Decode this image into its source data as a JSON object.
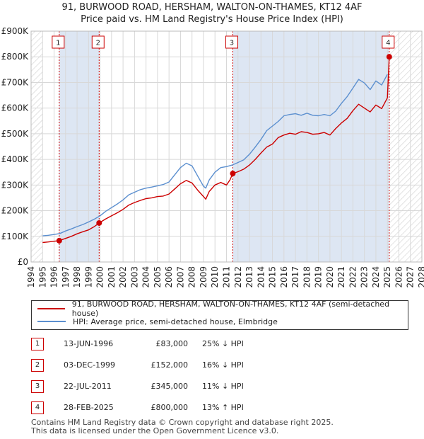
{
  "title_line1": "91, BURWOOD ROAD, HERSHAM, WALTON-ON-THAMES, KT12 4AF",
  "title_line2": "Price paid vs. HM Land Registry's House Price Index (HPI)",
  "colors": {
    "property": "#cc0000",
    "hpi": "#5b8fcf",
    "shade": "#dde6f3",
    "grid": "#d8d8d8",
    "marker": "#cc0000"
  },
  "chart_data": {
    "type": "line",
    "title": "Price paid vs. HM Land Registry's House Price Index (HPI)",
    "xlabel": "",
    "ylabel": "",
    "xlim": [
      1994,
      2028
    ],
    "ylim": [
      0,
      900000
    ],
    "x_ticks": [
      "1994",
      "1995",
      "1996",
      "1997",
      "1998",
      "1999",
      "2000",
      "2001",
      "2002",
      "2003",
      "2004",
      "2005",
      "2006",
      "2007",
      "2008",
      "2009",
      "2010",
      "2011",
      "2012",
      "2013",
      "2014",
      "2015",
      "2016",
      "2017",
      "2018",
      "2019",
      "2020",
      "2021",
      "2022",
      "2023",
      "2024",
      "2025",
      "2026",
      "2027",
      "2028"
    ],
    "y_ticks": [
      {
        "value": 0,
        "label": "£0"
      },
      {
        "value": 100000,
        "label": "£100K"
      },
      {
        "value": 200000,
        "label": "£200K"
      },
      {
        "value": 300000,
        "label": "£300K"
      },
      {
        "value": 400000,
        "label": "£400K"
      },
      {
        "value": 500000,
        "label": "£500K"
      },
      {
        "value": 600000,
        "label": "£600K"
      },
      {
        "value": 700000,
        "label": "£700K"
      },
      {
        "value": 800000,
        "label": "£800K"
      },
      {
        "value": 900000,
        "label": "£900K"
      }
    ],
    "hatch_ranges": [
      [
        1994,
        1995
      ],
      [
        2025.16,
        2028
      ]
    ],
    "shaded_ranges": [
      [
        1996.45,
        1999.92
      ],
      [
        2011.55,
        2025.16
      ]
    ],
    "series": [
      {
        "name": "91, BURWOOD ROAD, HERSHAM, WALTON-ON-THAMES, KT12 4AF (semi-detached house)",
        "color": "#cc0000",
        "x": [
          1995.0,
          1995.5,
          1996.0,
          1996.45,
          1997.0,
          1997.5,
          1998.0,
          1998.5,
          1999.0,
          1999.5,
          1999.92,
          2000.5,
          2001.0,
          2001.5,
          2002.0,
          2002.5,
          2003.0,
          2003.5,
          2004.0,
          2004.5,
          2005.0,
          2005.5,
          2006.0,
          2006.5,
          2007.0,
          2007.5,
          2008.0,
          2008.5,
          2009.0,
          2009.2,
          2009.5,
          2010.0,
          2010.5,
          2011.0,
          2011.3,
          2011.55,
          2012.0,
          2012.5,
          2013.0,
          2013.5,
          2014.0,
          2014.5,
          2015.0,
          2015.5,
          2016.0,
          2016.5,
          2017.0,
          2017.5,
          2018.0,
          2018.5,
          2019.0,
          2019.5,
          2020.0,
          2020.5,
          2021.0,
          2021.5,
          2022.0,
          2022.5,
          2023.0,
          2023.5,
          2024.0,
          2024.5,
          2025.0,
          2025.16
        ],
        "y": [
          76000,
          78000,
          81000,
          83000,
          92000,
          100000,
          110000,
          118000,
          125000,
          138000,
          152000,
          168000,
          180000,
          192000,
          205000,
          222000,
          232000,
          240000,
          247000,
          250000,
          255000,
          257000,
          265000,
          285000,
          305000,
          318000,
          308000,
          280000,
          255000,
          245000,
          275000,
          300000,
          310000,
          300000,
          320000,
          345000,
          352000,
          362000,
          378000,
          400000,
          425000,
          448000,
          460000,
          485000,
          495000,
          502000,
          498000,
          508000,
          505000,
          498000,
          500000,
          505000,
          495000,
          520000,
          542000,
          560000,
          590000,
          615000,
          600000,
          585000,
          612000,
          598000,
          640000,
          800000
        ]
      },
      {
        "name": "HPI: Average price, semi-detached house, Elmbridge",
        "color": "#5b8fcf",
        "x": [
          1995.0,
          1995.5,
          1996.0,
          1996.5,
          1997.0,
          1997.5,
          1998.0,
          1998.5,
          1999.0,
          1999.5,
          2000.0,
          2000.5,
          2001.0,
          2001.5,
          2002.0,
          2002.5,
          2003.0,
          2003.5,
          2004.0,
          2004.5,
          2005.0,
          2005.5,
          2006.0,
          2006.5,
          2007.0,
          2007.5,
          2008.0,
          2008.5,
          2009.0,
          2009.2,
          2009.5,
          2010.0,
          2010.5,
          2011.0,
          2011.5,
          2012.0,
          2012.5,
          2013.0,
          2013.5,
          2014.0,
          2014.5,
          2015.0,
          2015.5,
          2016.0,
          2016.5,
          2017.0,
          2017.5,
          2018.0,
          2018.5,
          2019.0,
          2019.5,
          2020.0,
          2020.5,
          2021.0,
          2021.5,
          2022.0,
          2022.5,
          2023.0,
          2023.5,
          2024.0,
          2024.5,
          2025.0
        ],
        "y": [
          102000,
          104000,
          107000,
          111000,
          121000,
          129000,
          138000,
          146000,
          156000,
          167000,
          180000,
          198000,
          212000,
          226000,
          242000,
          262000,
          272000,
          282000,
          288000,
          292000,
          297000,
          302000,
          312000,
          340000,
          368000,
          385000,
          375000,
          335000,
          295000,
          288000,
          320000,
          350000,
          368000,
          372000,
          378000,
          388000,
          398000,
          420000,
          448000,
          478000,
          512000,
          530000,
          548000,
          570000,
          575000,
          578000,
          572000,
          580000,
          572000,
          570000,
          575000,
          570000,
          588000,
          618000,
          645000,
          678000,
          712000,
          698000,
          672000,
          706000,
          690000,
          732000
        ]
      }
    ],
    "transactions": [
      {
        "num": "1",
        "x": 1996.45,
        "y": 83000,
        "date": "13-JUN-1996",
        "price": "£83,000",
        "hpi": "25% ↓ HPI"
      },
      {
        "num": "2",
        "x": 1999.92,
        "y": 152000,
        "date": "03-DEC-1999",
        "price": "£152,000",
        "hpi": "16% ↓ HPI"
      },
      {
        "num": "3",
        "x": 2011.55,
        "y": 345000,
        "date": "22-JUL-2011",
        "price": "£345,000",
        "hpi": "11% ↓ HPI"
      },
      {
        "num": "4",
        "x": 2025.16,
        "y": 800000,
        "date": "28-FEB-2025",
        "price": "£800,000",
        "hpi": "13% ↑ HPI"
      }
    ]
  },
  "legend": {
    "property": "91, BURWOOD ROAD, HERSHAM, WALTON-ON-THAMES, KT12 4AF (semi-detached house)",
    "hpi": "HPI: Average price, semi-detached house, Elmbridge"
  },
  "footer": {
    "line1": "Contains HM Land Registry data © Crown copyright and database right 2025.",
    "line2": "This data is licensed under the Open Government Licence v3.0."
  }
}
